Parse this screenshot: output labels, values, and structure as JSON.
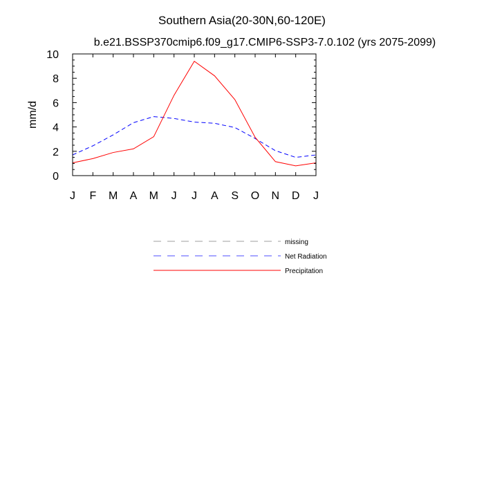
{
  "chart_data": {
    "type": "line",
    "title": "Southern Asia(20-30N,60-120E)",
    "subtitle": "b.e21.BSSP370cmip6.f09_g17.CMIP6-SSP3-7.0.102 (yrs 2075-2099)",
    "xlabel": "",
    "ylabel": "mm/d",
    "x_ticks": [
      "J",
      "F",
      "M",
      "A",
      "M",
      "J",
      "J",
      "A",
      "S",
      "O",
      "N",
      "D",
      "J"
    ],
    "y_ticks": [
      "0",
      "2",
      "4",
      "6",
      "8",
      "10"
    ],
    "ylim": [
      0,
      10
    ],
    "grid": false,
    "legend_position": "below",
    "series": [
      {
        "name": "missing",
        "style": "dashed",
        "color": "#9e9e9e",
        "values": []
      },
      {
        "name": "Net Radiation",
        "style": "dashed",
        "color": "#0000ff",
        "values": [
          1.7,
          2.45,
          3.35,
          4.35,
          4.85,
          4.7,
          4.4,
          4.3,
          3.95,
          3.05,
          2.05,
          1.5,
          1.7
        ]
      },
      {
        "name": "Precipitation",
        "style": "solid",
        "color": "#ff0000",
        "values": [
          1.05,
          1.4,
          1.9,
          2.2,
          3.2,
          6.6,
          9.4,
          8.2,
          6.25,
          3.15,
          1.15,
          0.8,
          1.05
        ]
      }
    ]
  }
}
